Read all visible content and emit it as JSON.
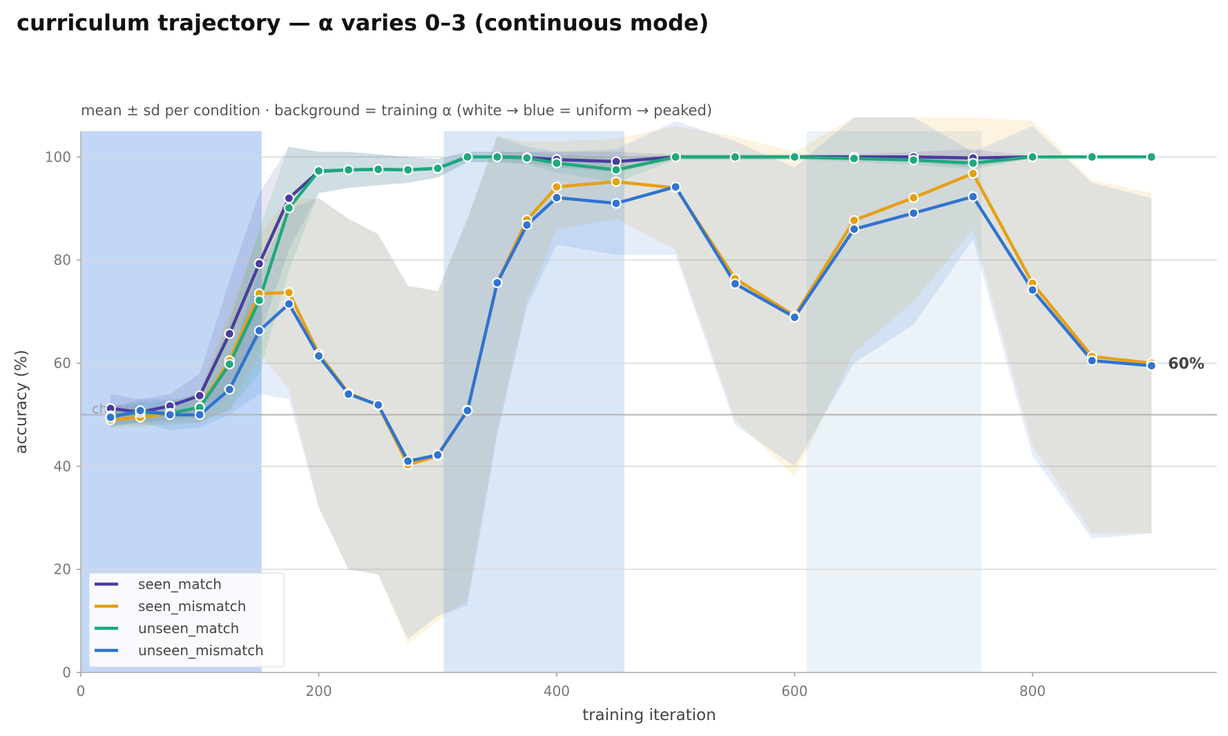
{
  "chart_data": {
    "type": "line",
    "title": "curriculum trajectory — α varies 0–3 (continuous mode)",
    "subtitle": "mean ± sd per condition · background = training α (white → blue = uniform → peaked)",
    "xlabel": "training iteration",
    "ylabel": "accuracy (%)",
    "xlim": [
      0,
      955
    ],
    "ylim": [
      0,
      105
    ],
    "xticks": [
      0,
      200,
      400,
      600,
      800
    ],
    "yticks": [
      0,
      20,
      40,
      60,
      80,
      100
    ],
    "grid": "horizontal",
    "legend_position": "bottom-left",
    "chance_line": {
      "y": 50,
      "label": "chance"
    },
    "end_label": {
      "text": "60%",
      "series": "seen_mismatch"
    },
    "background_alpha_bands": [
      {
        "x0": 0,
        "x1": 152,
        "intensity": 0.95
      },
      {
        "x0": 305,
        "x1": 457,
        "intensity": 0.65
      },
      {
        "x0": 610,
        "x1": 757,
        "intensity": 0.4
      }
    ],
    "x": [
      25,
      50,
      75,
      100,
      125,
      150,
      175,
      200,
      225,
      250,
      275,
      300,
      325,
      350,
      375,
      400,
      450,
      500,
      550,
      600,
      650,
      700,
      750,
      800,
      850,
      900
    ],
    "series": [
      {
        "name": "seen_match",
        "color": "#4a3d9e",
        "values": [
          51.2,
          50.5,
          51.7,
          53.7,
          65.7,
          79.3,
          92.0,
          97.2,
          97.5,
          97.6,
          97.5,
          97.8,
          100.0,
          100.0,
          99.9,
          99.5,
          99.1,
          100.0,
          100.0,
          100.0,
          100.0,
          100.0,
          99.8,
          100.0,
          100.0,
          100.0
        ],
        "lower": [
          48.0,
          48.5,
          49.0,
          49.5,
          55.0,
          65.0,
          82.0,
          93.0,
          94.0,
          94.5,
          95.0,
          96.0,
          99.0,
          99.0,
          98.8,
          98.0,
          97.0,
          99.5,
          99.5,
          99.5,
          99.5,
          99.0,
          98.0,
          99.8,
          100.0,
          100.0
        ],
        "upper": [
          54.0,
          53.0,
          54.0,
          58.0,
          76.0,
          93.0,
          102.0,
          101.0,
          101.0,
          100.5,
          100.0,
          99.6,
          101.0,
          101.0,
          101.0,
          101.0,
          101.0,
          100.5,
          100.5,
          100.5,
          100.5,
          101.0,
          101.5,
          100.2,
          100.0,
          100.0
        ]
      },
      {
        "name": "seen_mismatch",
        "color": "#e6a012",
        "values": [
          49.0,
          49.5,
          50.2,
          51.5,
          60.5,
          73.5,
          73.7,
          61.8,
          54.2,
          51.8,
          40.3,
          42.0,
          50.9,
          75.6,
          87.8,
          94.2,
          95.2,
          94.0,
          76.4,
          69.2,
          87.7,
          92.1,
          96.8,
          75.5,
          61.3,
          60.0
        ],
        "lower": [
          47.5,
          47.5,
          48.5,
          48.5,
          51.0,
          62.0,
          55.0,
          32.0,
          20.0,
          19.0,
          5.5,
          10.0,
          14.0,
          47.0,
          72.0,
          86.0,
          88.0,
          82.0,
          49.0,
          38.0,
          62.0,
          72.0,
          86.0,
          44.0,
          27.0,
          27.0
        ],
        "upper": [
          50.5,
          51.0,
          52.0,
          54.5,
          70.0,
          85.0,
          92.0,
          92.0,
          88.0,
          85.0,
          75.0,
          74.0,
          88.0,
          104.0,
          103.0,
          103.0,
          103.5,
          106.0,
          104.0,
          101.0,
          113.0,
          112.0,
          108.0,
          107.0,
          95.5,
          93.0
        ]
      },
      {
        "name": "unseen_match",
        "color": "#1ea97c",
        "values": [
          49.8,
          50.4,
          50.3,
          51.4,
          59.8,
          72.2,
          90.1,
          97.3,
          97.5,
          97.6,
          97.5,
          97.8,
          100.0,
          100.0,
          99.8,
          98.8,
          97.5,
          100.0,
          100.0,
          100.0,
          99.7,
          99.4,
          98.8,
          100.0,
          100.0,
          100.0
        ],
        "lower": [
          48.0,
          48.0,
          48.0,
          48.5,
          51.0,
          58.0,
          78.0,
          93.0,
          94.0,
          94.5,
          95.0,
          96.0,
          99.0,
          99.0,
          98.5,
          97.0,
          95.0,
          99.5,
          99.5,
          99.5,
          99.0,
          98.5,
          97.5,
          99.8,
          100.0,
          100.0
        ],
        "upper": [
          51.5,
          52.5,
          52.5,
          54.5,
          68.0,
          86.0,
          102.0,
          101.0,
          101.0,
          100.5,
          100.0,
          99.6,
          101.0,
          101.0,
          101.0,
          100.5,
          100.0,
          100.5,
          100.5,
          100.5,
          100.4,
          100.3,
          100.1,
          100.2,
          100.0,
          100.0
        ]
      },
      {
        "name": "unseen_mismatch",
        "color": "#2f74d0",
        "values": [
          49.5,
          50.8,
          50.0,
          50.0,
          54.9,
          66.3,
          71.5,
          61.4,
          54.0,
          51.9,
          41.0,
          42.2,
          50.8,
          75.6,
          86.8,
          92.1,
          91.0,
          94.2,
          75.4,
          68.9,
          86.0,
          89.1,
          92.3,
          74.2,
          60.5,
          59.5
        ],
        "lower": [
          47.5,
          48.5,
          47.0,
          47.5,
          50.0,
          54.0,
          53.0,
          32.0,
          20.0,
          19.0,
          6.5,
          11.0,
          13.0,
          46.0,
          71.0,
          83.0,
          81.0,
          81.0,
          48.0,
          40.0,
          60.0,
          67.5,
          84.0,
          42.0,
          26.0,
          27.0
        ],
        "upper": [
          51.5,
          53.0,
          53.0,
          53.0,
          60.0,
          78.0,
          90.0,
          92.0,
          88.0,
          85.0,
          75.0,
          74.0,
          88.0,
          104.0,
          102.0,
          101.0,
          101.5,
          107.0,
          103.0,
          98.0,
          112.0,
          111.0,
          101.0,
          106.0,
          95.0,
          92.0
        ]
      }
    ]
  }
}
